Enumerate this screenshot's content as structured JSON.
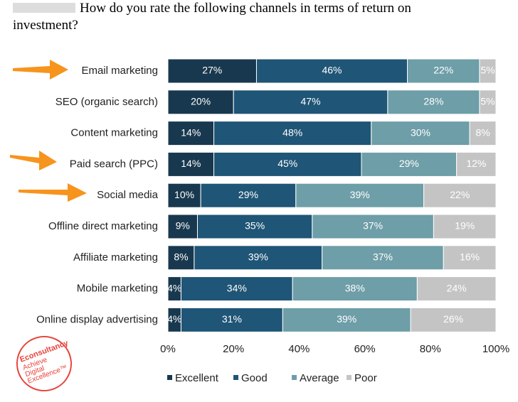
{
  "chart_data": {
    "type": "stacked-bar-horizontal",
    "title": "How do you rate the following channels in terms of return on investment?",
    "categories": [
      "Email marketing",
      "SEO (organic search)",
      "Content marketing",
      "Paid search (PPC)",
      "Social media",
      "Offline direct marketing",
      "Affiliate marketing",
      "Mobile marketing",
      "Online display advertising"
    ],
    "series": [
      {
        "name": "Excellent",
        "color": "#18384f",
        "values": [
          27,
          20,
          14,
          14,
          10,
          9,
          8,
          4,
          4
        ],
        "value_labels": [
          "27%",
          "20%",
          "14%",
          "14%",
          "10%",
          "9%",
          "8%",
          "4%",
          "4%"
        ]
      },
      {
        "name": "Good",
        "color": "#1f5576",
        "values": [
          46,
          47,
          48,
          45,
          29,
          35,
          39,
          34,
          31
        ],
        "value_labels": [
          "46%",
          "47%",
          "48%",
          "45%",
          "29%",
          "35%",
          "39%",
          "34%",
          "31%"
        ]
      },
      {
        "name": "Average",
        "color": "#6e9ea8",
        "values": [
          22,
          28,
          30,
          29,
          39,
          37,
          37,
          38,
          39
        ],
        "value_labels": [
          "22%",
          "28%",
          "30%",
          "29%",
          "39%",
          "37%",
          "37%",
          "38%",
          "39%"
        ]
      },
      {
        "name": "Poor",
        "color": "#c4c4c4",
        "values": [
          5,
          5,
          8,
          12,
          22,
          19,
          16,
          24,
          26
        ],
        "value_labels": [
          "5%",
          "5%",
          "8%",
          "12%",
          "22%",
          "19%",
          "16%",
          "24%",
          "26%"
        ]
      }
    ],
    "xlim": [
      0,
      100
    ],
    "xticks": [
      {
        "value": 0,
        "label": "0%"
      },
      {
        "value": 20,
        "label": "20%"
      },
      {
        "value": 40,
        "label": "40%"
      },
      {
        "value": 60,
        "label": "60%"
      },
      {
        "value": 80,
        "label": "80%"
      },
      {
        "value": 100,
        "label": "100%"
      }
    ],
    "legend": "bottom"
  },
  "logo": {
    "name": "Econsultancy",
    "tagline": [
      "Achieve",
      "Digital",
      "Excellence™"
    ]
  }
}
